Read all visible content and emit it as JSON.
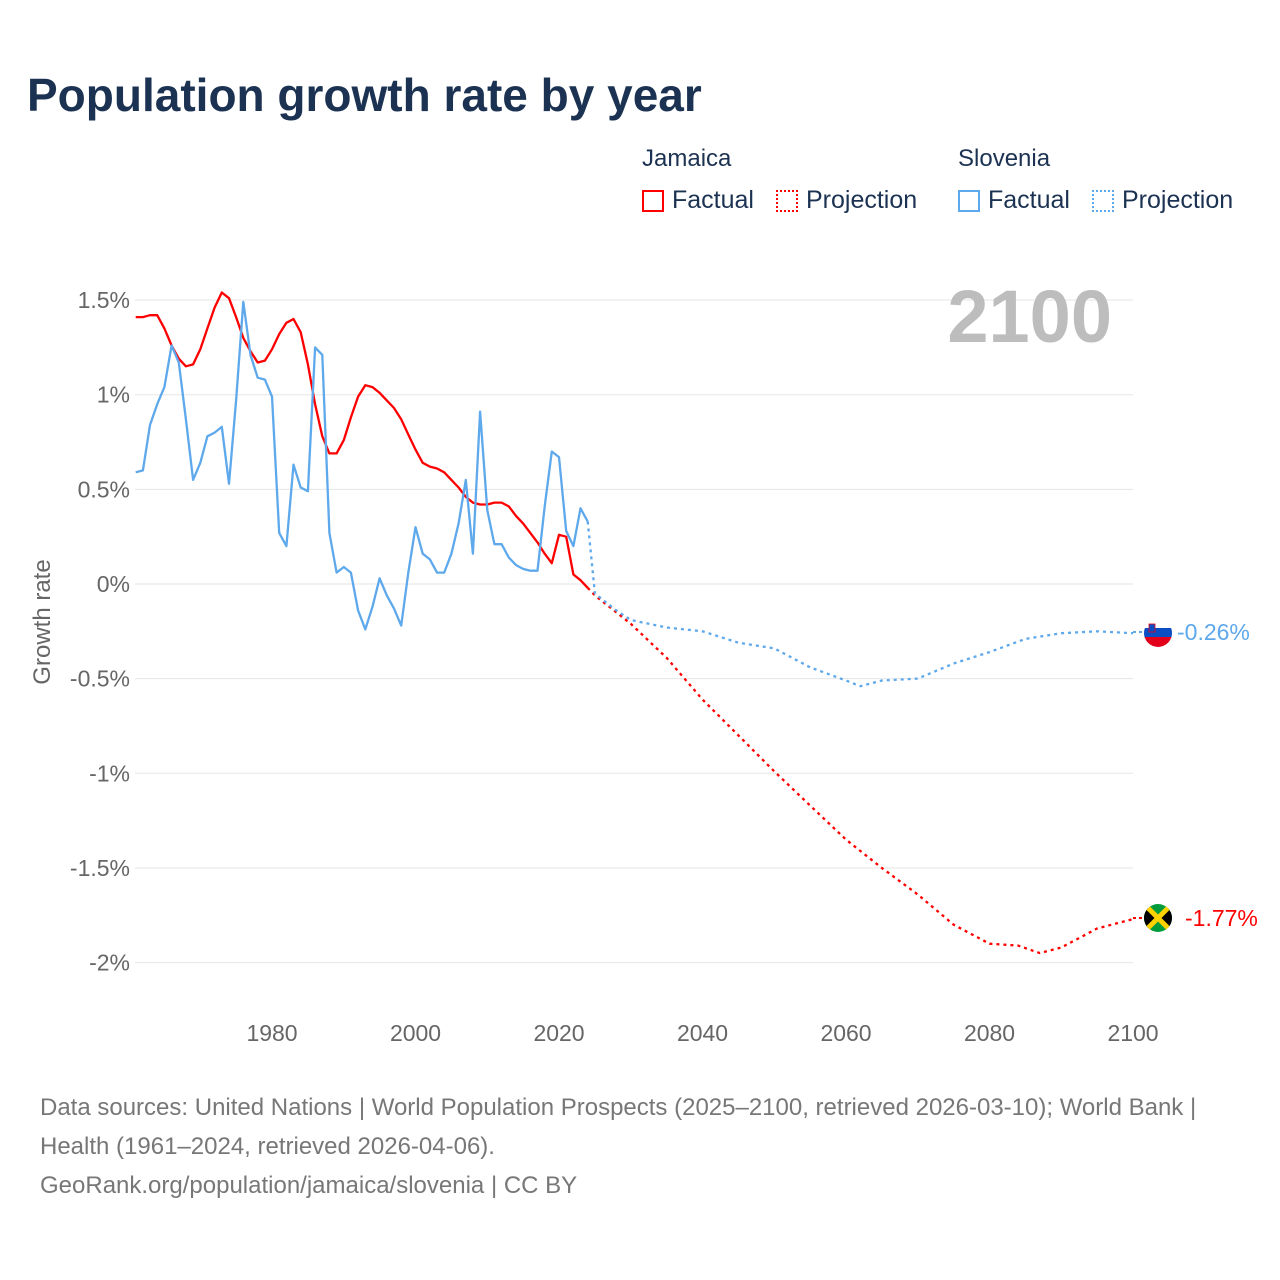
{
  "title": "Population growth rate by year",
  "legend": {
    "groups": [
      {
        "name": "Jamaica",
        "factual": "Factual",
        "projection": "Projection",
        "color": "#ff0000"
      },
      {
        "name": "Slovenia",
        "factual": "Factual",
        "projection": "Projection",
        "color": "#5ea8ec"
      }
    ]
  },
  "year_label": "2100",
  "sources": {
    "line1": "Data sources: United Nations | World Population Prospects (2025–2100, retrieved 2026-03-10); World Bank | Health (1961–2024, retrieved 2026-04-06).",
    "line2": "GeoRank.org/population/jamaica/slovenia | CC BY"
  },
  "chart_data": {
    "type": "line",
    "title": "Population growth rate by year",
    "ylabel": "Growth rate",
    "xlabel": "",
    "xlim": [
      1961,
      2100
    ],
    "ylim": [
      -2.1,
      1.6
    ],
    "x_ticks": [
      1980,
      2000,
      2020,
      2040,
      2060,
      2080,
      2100
    ],
    "x_tick_labels": [
      "1980",
      "2000",
      "2020",
      "2040",
      "2060",
      "2080",
      "2100"
    ],
    "y_ticks": [
      1.5,
      1,
      0.5,
      0,
      -0.5,
      -1,
      -1.5,
      -2
    ],
    "y_tick_labels": [
      "1.5%",
      "1%",
      "0.5%",
      "0%",
      "-0.5%",
      "-1%",
      "-1.5%",
      "-2%"
    ],
    "grid": true,
    "legend_placement": "top-right",
    "series": [
      {
        "name": "Jamaica",
        "color": "#ff0000",
        "end_label": "-1.77%",
        "factual_start": 1961,
        "factual": [
          1.41,
          1.41,
          1.42,
          1.42,
          1.35,
          1.26,
          1.19,
          1.15,
          1.16,
          1.24,
          1.35,
          1.46,
          1.54,
          1.51,
          1.41,
          1.3,
          1.23,
          1.17,
          1.18,
          1.24,
          1.32,
          1.38,
          1.4,
          1.33,
          1.16,
          0.95,
          0.78,
          0.69,
          0.69,
          0.76,
          0.88,
          0.99,
          1.05,
          1.04,
          1.01,
          0.97,
          0.93,
          0.87,
          0.79,
          0.71,
          0.64,
          0.62,
          0.61,
          0.59,
          0.55,
          0.51,
          0.46,
          0.43,
          0.42,
          0.42,
          0.43,
          0.43,
          0.41,
          0.36,
          0.32,
          0.27,
          0.22,
          0.16,
          0.11,
          0.26,
          0.25,
          0.05,
          0.02,
          -0.02
        ],
        "projection": [
          [
            2024,
            -0.02
          ],
          [
            2025,
            -0.06
          ],
          [
            2030,
            -0.21
          ],
          [
            2035,
            -0.39
          ],
          [
            2040,
            -0.61
          ],
          [
            2045,
            -0.8
          ],
          [
            2050,
            -0.99
          ],
          [
            2055,
            -1.17
          ],
          [
            2060,
            -1.35
          ],
          [
            2065,
            -1.5
          ],
          [
            2070,
            -1.64
          ],
          [
            2075,
            -1.8
          ],
          [
            2080,
            -1.9
          ],
          [
            2084,
            -1.91
          ],
          [
            2087,
            -1.95
          ],
          [
            2090,
            -1.92
          ],
          [
            2095,
            -1.82
          ],
          [
            2100,
            -1.77
          ]
        ]
      },
      {
        "name": "Slovenia",
        "color": "#5ea8ec",
        "end_label": "-0.26%",
        "factual_start": 1961,
        "factual": [
          0.59,
          0.6,
          0.84,
          0.95,
          1.04,
          1.26,
          1.17,
          0.87,
          0.55,
          0.64,
          0.78,
          0.8,
          0.83,
          0.53,
          0.97,
          1.49,
          1.21,
          1.09,
          1.08,
          0.99,
          0.27,
          0.2,
          0.63,
          0.51,
          0.49,
          1.25,
          1.21,
          0.27,
          0.06,
          0.09,
          0.06,
          -0.14,
          -0.24,
          -0.12,
          0.03,
          -0.06,
          -0.13,
          -0.22,
          0.06,
          0.3,
          0.16,
          0.13,
          0.06,
          0.06,
          0.16,
          0.32,
          0.55,
          0.16,
          0.91,
          0.39,
          0.21,
          0.21,
          0.14,
          0.1,
          0.08,
          0.07,
          0.07,
          0.41,
          0.7,
          0.67,
          0.28,
          0.2,
          0.4,
          0.33
        ],
        "projection": [
          [
            2024,
            0.33
          ],
          [
            2025,
            -0.05
          ],
          [
            2028,
            -0.14
          ],
          [
            2030,
            -0.19
          ],
          [
            2035,
            -0.23
          ],
          [
            2040,
            -0.25
          ],
          [
            2045,
            -0.31
          ],
          [
            2050,
            -0.34
          ],
          [
            2055,
            -0.44
          ],
          [
            2060,
            -0.51
          ],
          [
            2062,
            -0.54
          ],
          [
            2065,
            -0.51
          ],
          [
            2070,
            -0.5
          ],
          [
            2075,
            -0.42
          ],
          [
            2080,
            -0.36
          ],
          [
            2085,
            -0.29
          ],
          [
            2090,
            -0.26
          ],
          [
            2095,
            -0.25
          ],
          [
            2100,
            -0.26
          ]
        ]
      }
    ]
  }
}
